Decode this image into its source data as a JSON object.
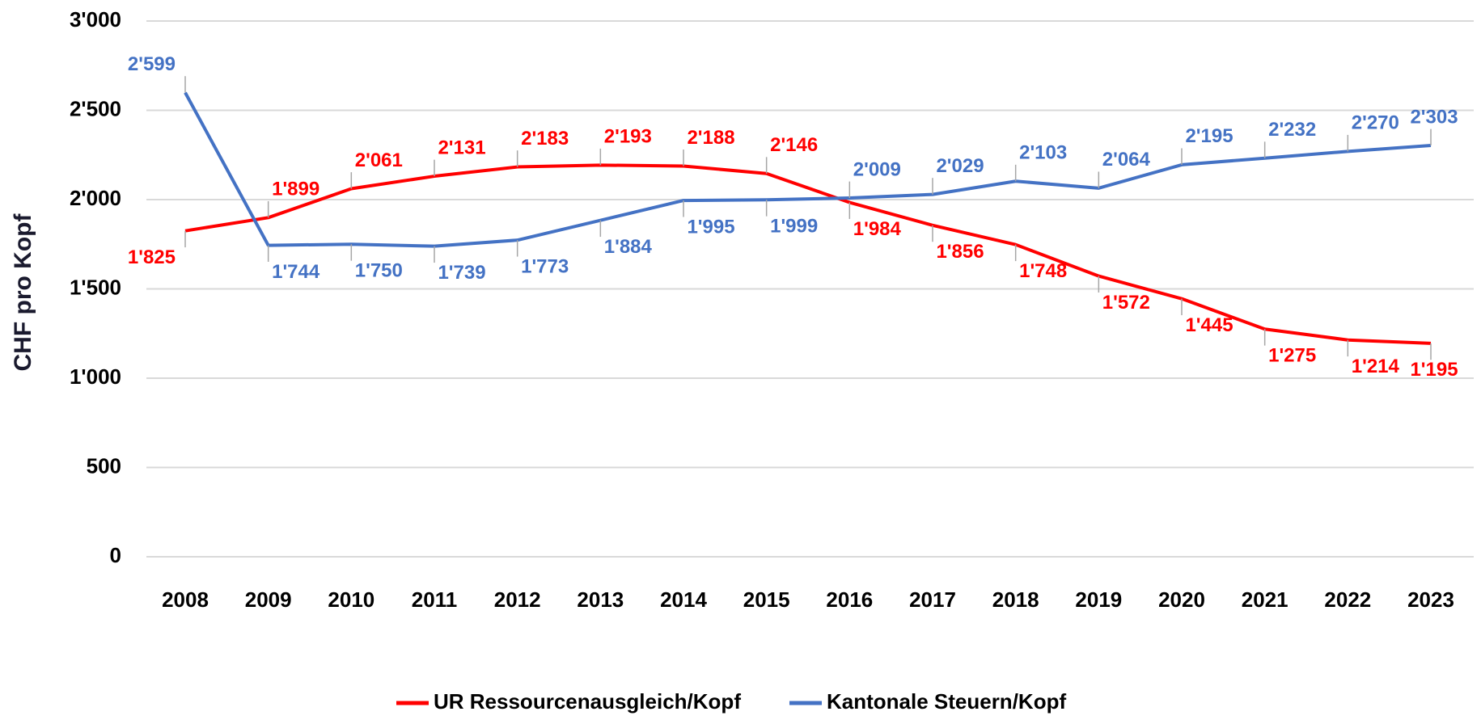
{
  "chart_data": {
    "type": "line",
    "y_label": "CHF pro Kopf",
    "categories": [
      "2008",
      "2009",
      "2010",
      "2011",
      "2012",
      "2013",
      "2014",
      "2015",
      "2016",
      "2017",
      "2018",
      "2019",
      "2020",
      "2021",
      "2022",
      "2023"
    ],
    "series": [
      {
        "name": "UR Ressourcenausgleich/Kopf",
        "color": "#ff0000",
        "values": [
          1825,
          1899,
          2061,
          2131,
          2183,
          2193,
          2188,
          2146,
          1984,
          1856,
          1748,
          1572,
          1445,
          1275,
          1214,
          1195
        ],
        "value_labels": [
          "1'825",
          "1'899",
          "2'061",
          "2'131",
          "2'183",
          "2'193",
          "2'188",
          "2'146",
          "1'984",
          "1'856",
          "1'748",
          "1'572",
          "1'445",
          "1'275",
          "1'214",
          "1'195"
        ]
      },
      {
        "name": "Kantonale Steuern/Kopf",
        "color": "#4472c4",
        "values": [
          2599,
          1744,
          1750,
          1739,
          1773,
          1884,
          1995,
          1999,
          2009,
          2029,
          2103,
          2064,
          2195,
          2232,
          2270,
          2303
        ],
        "value_labels": [
          "2'599",
          "1'744",
          "1'750",
          "1'739",
          "1'773",
          "1'884",
          "1'995",
          "1'999",
          "2'009",
          "2'029",
          "2'103",
          "2'064",
          "2'195",
          "2'232",
          "2'270",
          "2'303"
        ]
      }
    ],
    "ylim": [
      0,
      3000
    ],
    "yticks": [
      0,
      500,
      {
        "value": 1000,
        "label": "1'000"
      },
      {
        "value": 1500,
        "label": "1'500"
      },
      {
        "value": 2000,
        "label": "2'000"
      },
      {
        "value": 2500,
        "label": "2'500"
      },
      {
        "value": 3000,
        "label": "3'000"
      }
    ],
    "grid": true,
    "legend": "bottom"
  }
}
